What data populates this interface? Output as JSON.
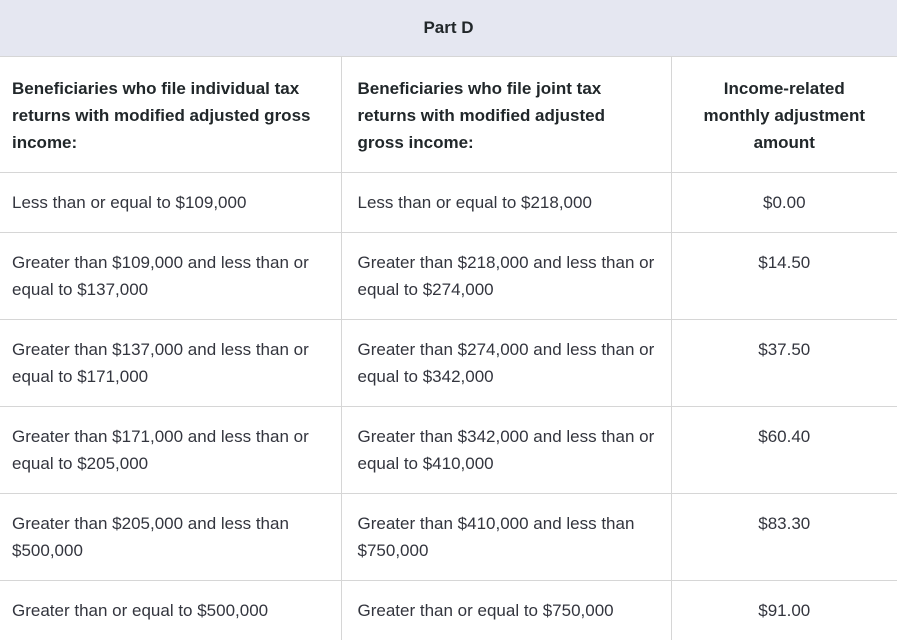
{
  "table": {
    "title": "Part D",
    "columns": [
      "Beneficiaries who file individual tax returns with modified adjusted gross income:",
      "Beneficiaries who file joint tax returns with modified adjusted gross income:",
      "Income-related monthly adjustment amount"
    ],
    "rows": [
      {
        "individual": "Less than or equal to $109,000",
        "joint": "Less than or equal to $218,000",
        "amount": "$0.00"
      },
      {
        "individual": "Greater than $109,000 and less than or equal to $137,000",
        "joint": "Greater than $218,000 and less than or equal to $274,000",
        "amount": "$14.50"
      },
      {
        "individual": "Greater than $137,000 and less than or equal to $171,000",
        "joint": "Greater than $274,000 and less than or equal to $342,000",
        "amount": "$37.50"
      },
      {
        "individual": "Greater than $171,000 and less than or equal to $205,000",
        "joint": "Greater than $342,000 and less than or equal to $410,000",
        "amount": "$60.40"
      },
      {
        "individual": "Greater than $205,000 and less than $500,000",
        "joint": "Greater than $410,000 and less than $750,000",
        "amount": "$83.30"
      },
      {
        "individual": "Greater than or equal to $500,000",
        "joint": "Greater than or equal to $750,000",
        "amount": "$91.00"
      }
    ],
    "colors": {
      "band_background": "#e5e7f1",
      "border": "#d6d6d6",
      "header_text": "#21272a",
      "body_text": "#33353e"
    }
  }
}
